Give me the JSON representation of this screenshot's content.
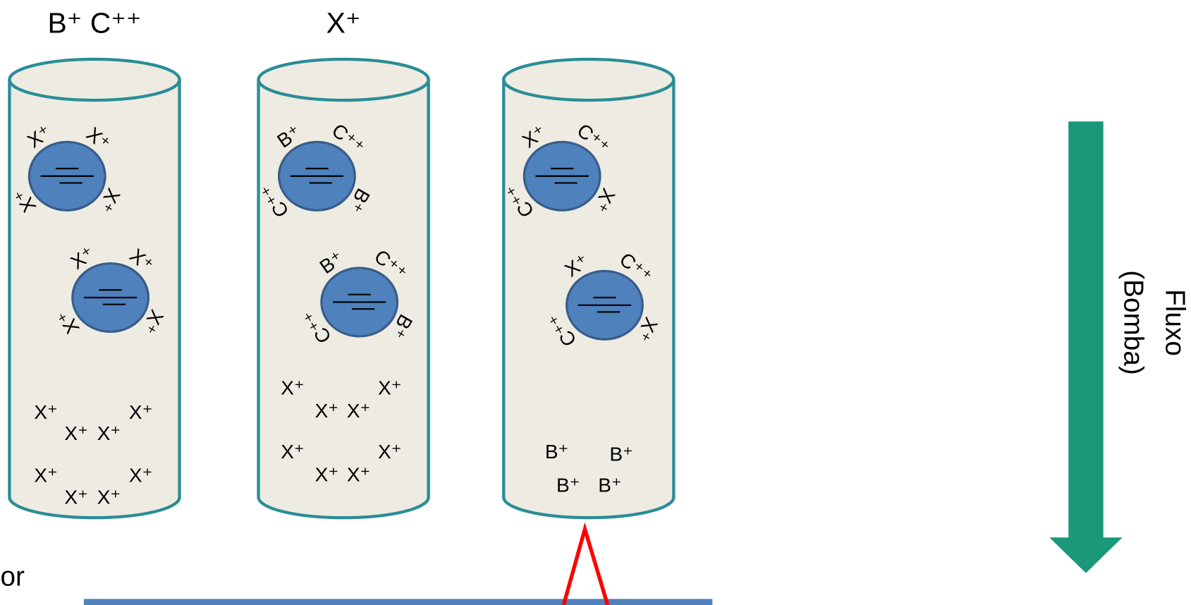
{
  "columns": [
    {
      "header": "B⁺ C⁺⁺",
      "beads": [
        {
          "ions": [
            "X⁺",
            "X⁺",
            "X⁺",
            "X⁺"
          ]
        },
        {
          "ions": [
            "X⁺",
            "X⁺",
            "X⁺",
            "X⁺"
          ]
        }
      ],
      "free_ions": [
        "X⁺",
        "X⁺",
        "X⁺",
        "X⁺",
        "X⁺",
        "X⁺",
        "X⁺",
        "X⁺"
      ]
    },
    {
      "header": "X⁺",
      "beads": [
        {
          "ions": [
            "B⁺",
            "C⁺⁺",
            "B⁺",
            "C⁺⁺"
          ]
        },
        {
          "ions": [
            "B⁺",
            "C⁺⁺",
            "B⁺",
            "C⁺⁺"
          ]
        }
      ],
      "free_ions": [
        "X⁺",
        "X⁺",
        "X⁺",
        "X⁺",
        "X⁺",
        "X⁺",
        "X⁺",
        "X⁺"
      ]
    },
    {
      "beads": [
        {
          "ions": [
            "X⁺",
            "C⁺⁺",
            "X⁺",
            "C⁺⁺"
          ]
        },
        {
          "ions": [
            "X⁺",
            "C⁺⁺",
            "X⁺",
            "C⁺⁺"
          ]
        }
      ],
      "free_ions": [
        "B⁺",
        "B⁺",
        "B⁺",
        "B⁺"
      ]
    }
  ],
  "flow_label": [
    "Fluxo",
    "(Bomba)"
  ],
  "detector_label": "or"
}
